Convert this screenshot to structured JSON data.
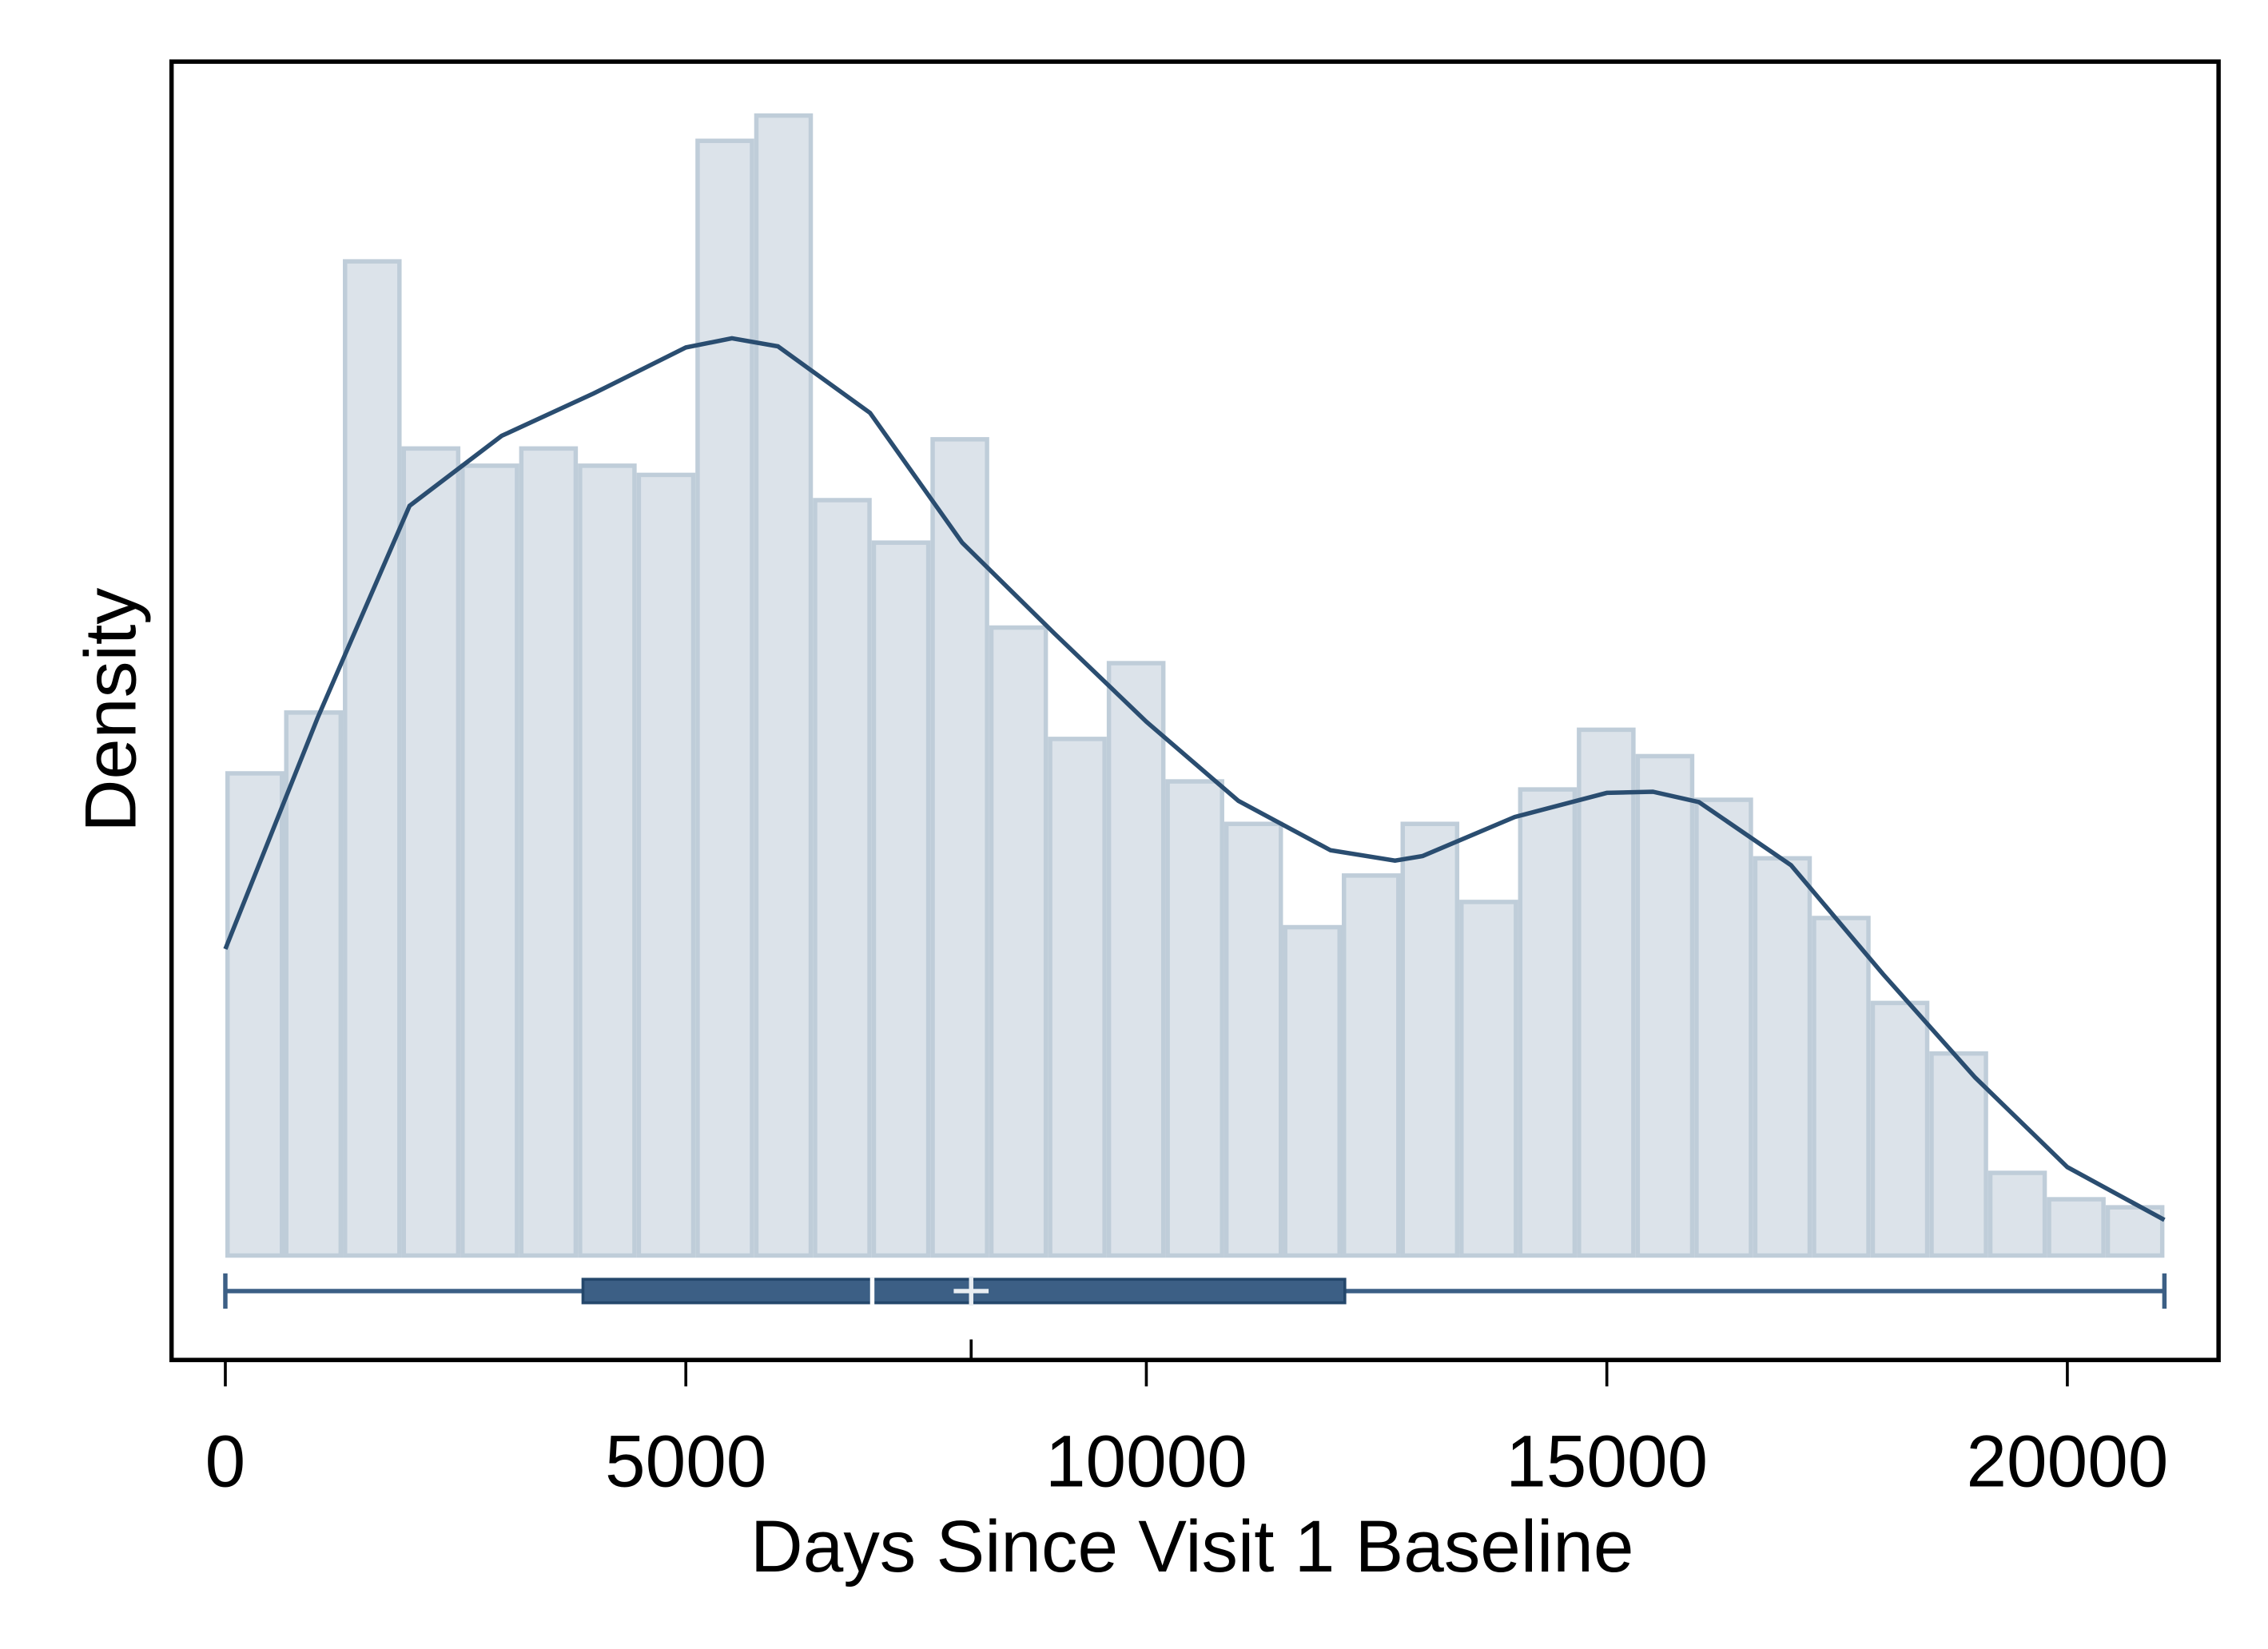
{
  "chart_data": {
    "type": "histogram",
    "x_label": "Days Since Visit 1 Baseline",
    "y_label": "Density",
    "bins": [
      0,
      638,
      1276,
      1914,
      2552,
      3190,
      3828,
      4466,
      5104,
      5742,
      6380,
      7018,
      7656,
      8294,
      8932,
      9570,
      10208,
      10846,
      11484,
      12122,
      12760,
      13398,
      14036,
      14674,
      15312,
      15950,
      16588,
      17226,
      17864,
      18502,
      19140,
      19778,
      20416,
      21054
    ],
    "values": [
      4.2e-05,
      4.73e-05,
      8.66e-05,
      7.03e-05,
      6.88e-05,
      7.03e-05,
      6.88e-05,
      6.8e-05,
      9.71e-05,
      9.93e-05,
      6.58e-05,
      6.21e-05,
      7.11e-05,
      5.47e-05,
      4.5e-05,
      5.16e-05,
      4.13e-05,
      3.76e-05,
      2.86e-05,
      3.31e-05,
      3.76e-05,
      3.08e-05,
      4.06e-05,
      4.58e-05,
      4.35e-05,
      3.97e-05,
      3.46e-05,
      2.94e-05,
      2.2e-05,
      1.76e-05,
      7.2e-06,
      4.9e-06,
      4.2e-06
    ],
    "color": "#dce3ea",
    "edge_color": "#bfcdd9",
    "density_curve": {
      "x": [
        0,
        1000,
        2000,
        3000,
        4000,
        5000,
        5500,
        6000,
        7000,
        8000,
        9000,
        10000,
        11000,
        12000,
        12700,
        13000,
        14000,
        15000,
        15500,
        16000,
        17000,
        18000,
        19000,
        20000,
        21054
      ],
      "values": [
        2.67e-05,
        4.68e-05,
        6.53e-05,
        7.14e-05,
        7.51e-05,
        7.91e-05,
        7.99e-05,
        7.92e-05,
        7.34e-05,
        6.21e-05,
        5.42e-05,
        4.65e-05,
        3.96e-05,
        3.53e-05,
        3.44e-05,
        3.48e-05,
        3.82e-05,
        4.03e-05,
        4.04e-05,
        3.95e-05,
        3.4e-05,
        2.45e-05,
        1.55e-05,
        7.7e-06,
        3.1e-06
      ],
      "color": "#2a4d70"
    },
    "boxplot": {
      "min": 0,
      "q1": 3883,
      "median": 7024,
      "mean": 8098,
      "q3": 12155,
      "max": 21054,
      "color": "#3c5f85"
    },
    "xlim": [
      -584,
      21642
    ],
    "ylim": [
      -9.1e-06,
      0.000104
    ],
    "xticks": [
      0,
      5000,
      10000,
      15000,
      20000
    ]
  }
}
